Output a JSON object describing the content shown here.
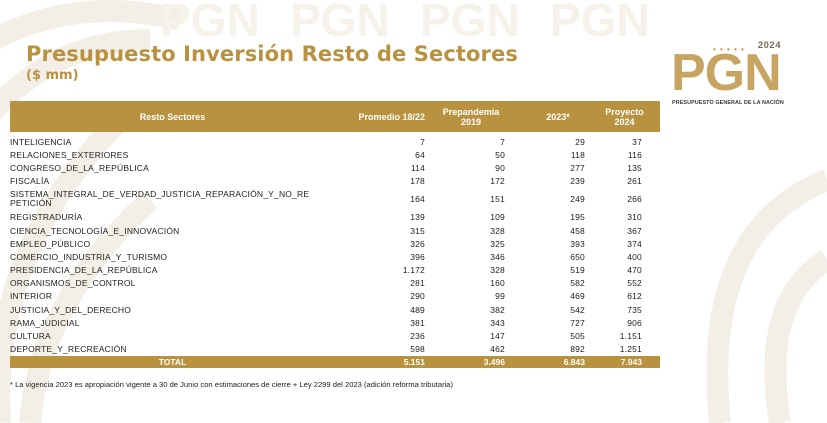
{
  "title": "Presupuesto Inversión Resto de Sectores",
  "subtitle": "($ mm)",
  "logo": {
    "year": "2024",
    "text": "PGN",
    "subtext": "PRESUPUESTO GENERAL DE LA NACIÓN"
  },
  "table": {
    "headers": {
      "name": "Resto Sectores",
      "promedio": "Promedio 18/22",
      "prepandemia_line1": "Prepandemia",
      "prepandemia_line2": "2019",
      "y2023": "2023*",
      "proyecto_line1": "Proyecto",
      "proyecto_line2": "2024"
    },
    "rows": [
      {
        "name": "INTELIGENCIA",
        "promedio": "7",
        "prepandemia": "7",
        "y2023": "29",
        "proyecto": "37"
      },
      {
        "name": "RELACIONES_EXTERIORES",
        "promedio": "64",
        "prepandemia": "50",
        "y2023": "118",
        "proyecto": "116"
      },
      {
        "name": "CONGRESO_DE_LA_REPÚBLICA",
        "promedio": "114",
        "prepandemia": "90",
        "y2023": "277",
        "proyecto": "135"
      },
      {
        "name": "FISCALÍA",
        "promedio": "178",
        "prepandemia": "172",
        "y2023": "239",
        "proyecto": "261"
      },
      {
        "name": "SISTEMA_INTEGRAL_DE_VERDAD_JUSTICIA_REPARACIÓN_Y_NO_REPETICIÓN",
        "promedio": "164",
        "prepandemia": "151",
        "y2023": "249",
        "proyecto": "266"
      },
      {
        "name": "REGISTRADURÍA",
        "promedio": "139",
        "prepandemia": "109",
        "y2023": "195",
        "proyecto": "310"
      },
      {
        "name": "CIENCIA_TECNOLOGÍA_E_INNOVACIÓN",
        "promedio": "315",
        "prepandemia": "328",
        "y2023": "458",
        "proyecto": "367"
      },
      {
        "name": "EMPLEO_PÚBLICO",
        "promedio": "326",
        "prepandemia": "325",
        "y2023": "393",
        "proyecto": "374"
      },
      {
        "name": "COMERCIO_INDUSTRIA_Y_TURISMO",
        "promedio": "396",
        "prepandemia": "346",
        "y2023": "650",
        "proyecto": "400"
      },
      {
        "name": "PRESIDENCIA_DE_LA_REPÚBLICA",
        "promedio": "1.172",
        "prepandemia": "328",
        "y2023": "519",
        "proyecto": "470"
      },
      {
        "name": "ORGANISMOS_DE_CONTROL",
        "promedio": "281",
        "prepandemia": "160",
        "y2023": "582",
        "proyecto": "552"
      },
      {
        "name": "INTERIOR",
        "promedio": "290",
        "prepandemia": "99",
        "y2023": "469",
        "proyecto": "612"
      },
      {
        "name": "JUSTICIA_Y_DEL_DERECHO",
        "promedio": "489",
        "prepandemia": "382",
        "y2023": "542",
        "proyecto": "735"
      },
      {
        "name": "RAMA_JUDICIAL",
        "promedio": "381",
        "prepandemia": "343",
        "y2023": "727",
        "proyecto": "906"
      },
      {
        "name": "CULTURA",
        "promedio": "236",
        "prepandemia": "147",
        "y2023": "505",
        "proyecto": "1.151"
      },
      {
        "name": "DEPORTE_Y_RECREACIÓN",
        "promedio": "598",
        "prepandemia": "462",
        "y2023": "892",
        "proyecto": "1.251"
      }
    ],
    "total": {
      "name": "TOTAL",
      "promedio": "5.151",
      "prepandemia": "3.496",
      "y2023": "6.843",
      "proyecto": "7.943"
    }
  },
  "footnote": "* La vigencia 2023 es apropiación vigente a 30 de Junio con estimaciones de cierre + Ley 2299 del 2023 (adición reforma tributaria)",
  "colors": {
    "accent": "#b8923f",
    "logo": "#c7a461",
    "watermark": "#f3ede2"
  }
}
